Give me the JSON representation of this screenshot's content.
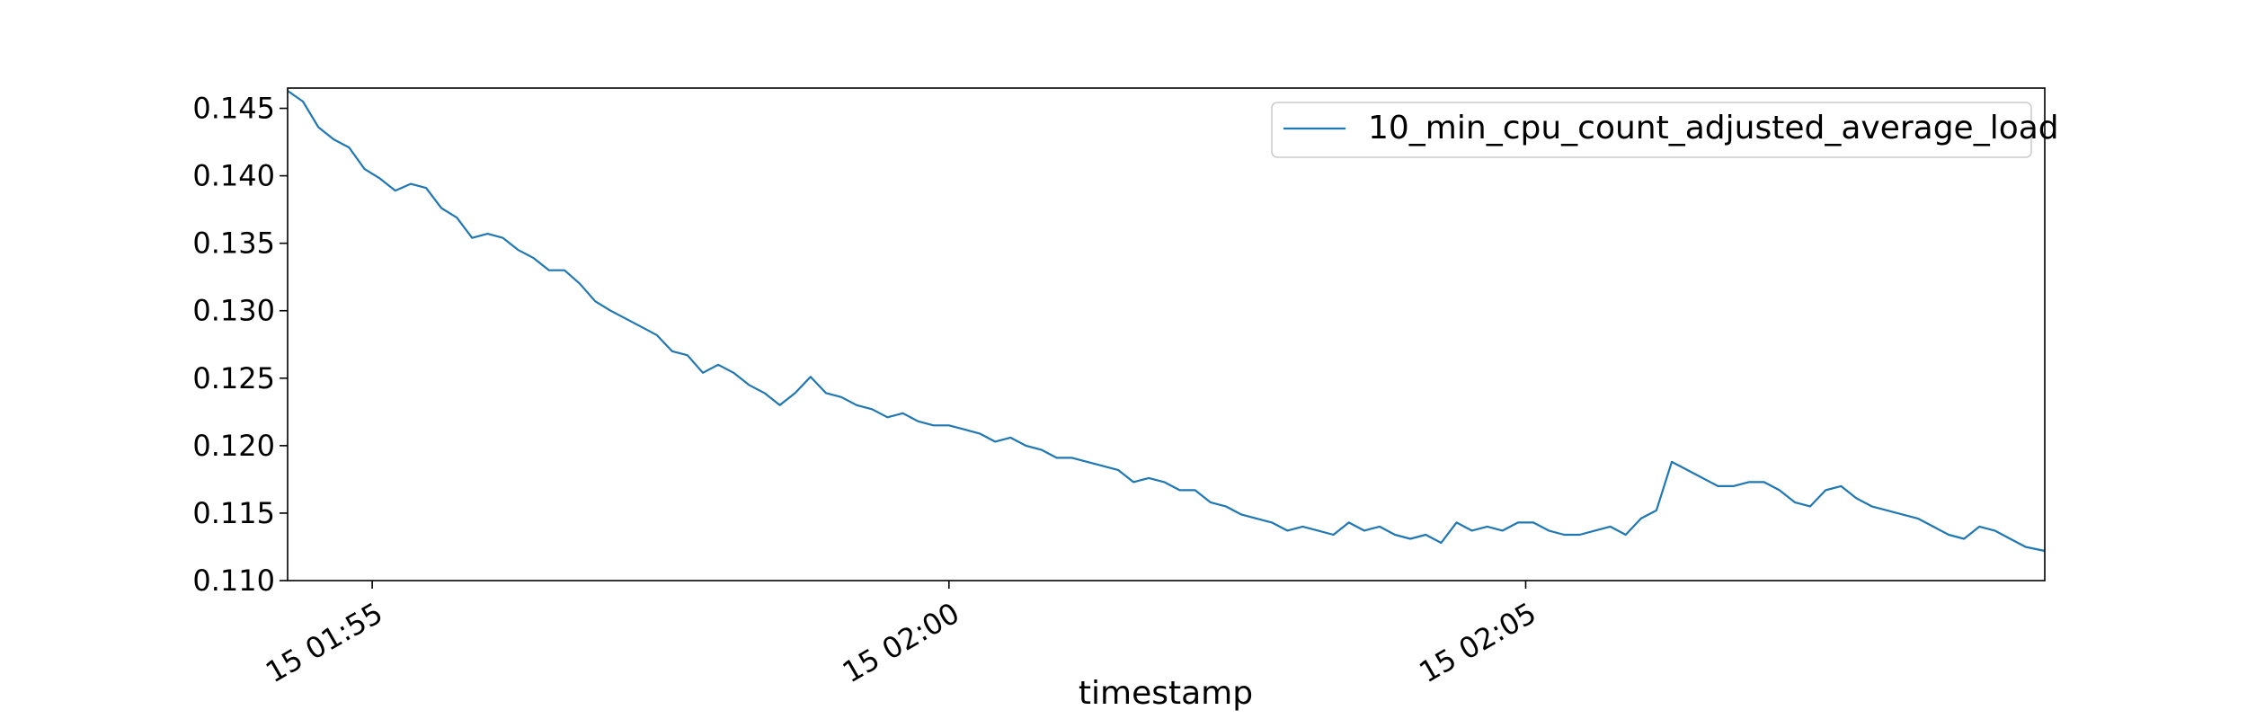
{
  "chart_data": {
    "type": "line",
    "title": "",
    "xlabel": "timestamp",
    "ylabel": "",
    "x_tick_labels": [
      "15 01:55",
      "15 02:00",
      "15 02:05"
    ],
    "x_ticks": [
      "01:55",
      "02:00",
      "02:05"
    ],
    "xlim": [
      "01:54:16",
      "02:09:30"
    ],
    "ylim": [
      0.11,
      0.1465
    ],
    "y_tick_labels": [
      "0.110",
      "0.115",
      "0.120",
      "0.125",
      "0.130",
      "0.135",
      "0.140",
      "0.145"
    ],
    "y_ticks": [
      0.11,
      0.115,
      0.12,
      0.125,
      0.13,
      0.135,
      0.14,
      0.145
    ],
    "grid": false,
    "legend_position": "top-right",
    "series": [
      {
        "name": "10_min_cpu_count_adjusted_average_load",
        "color": "#1f77b4",
        "x": [
          "01:54:16",
          "01:54:24",
          "01:54:32",
          "01:54:40",
          "01:54:48",
          "01:54:56",
          "01:55:04",
          "01:55:12",
          "01:55:20",
          "01:55:28",
          "01:55:36",
          "01:55:44",
          "01:55:52",
          "01:56:00",
          "01:56:08",
          "01:56:16",
          "01:56:24",
          "01:56:32",
          "01:56:40",
          "01:56:48",
          "01:56:56",
          "01:57:04",
          "01:57:12",
          "01:57:20",
          "01:57:28",
          "01:57:36",
          "01:57:44",
          "01:57:52",
          "01:58:00",
          "01:58:08",
          "01:58:16",
          "01:58:24",
          "01:58:32",
          "01:58:40",
          "01:58:48",
          "01:58:56",
          "01:59:04",
          "01:59:12",
          "01:59:20",
          "01:59:28",
          "01:59:36",
          "01:59:44",
          "01:59:52",
          "02:00:00",
          "02:00:08",
          "02:00:16",
          "02:00:24",
          "02:00:32",
          "02:00:40",
          "02:00:48",
          "02:00:56",
          "02:01:04",
          "02:01:12",
          "02:01:20",
          "02:01:28",
          "02:01:36",
          "02:01:44",
          "02:01:52",
          "02:02:00",
          "02:02:08",
          "02:02:16",
          "02:02:24",
          "02:02:32",
          "02:02:40",
          "02:02:48",
          "02:02:56",
          "02:03:04",
          "02:03:12",
          "02:03:20",
          "02:03:28",
          "02:03:36",
          "02:03:44",
          "02:03:52",
          "02:04:00",
          "02:04:08",
          "02:04:16",
          "02:04:24",
          "02:04:32",
          "02:04:40",
          "02:04:48",
          "02:04:56",
          "02:05:04",
          "02:05:12",
          "02:05:20",
          "02:05:28",
          "02:05:36",
          "02:05:44",
          "02:05:52",
          "02:06:00",
          "02:06:08",
          "02:06:16",
          "02:06:24",
          "02:06:32",
          "02:06:40",
          "02:06:48",
          "02:06:56",
          "02:07:04",
          "02:07:12",
          "02:07:20",
          "02:07:28",
          "02:07:36",
          "02:07:44",
          "02:07:52",
          "02:08:00",
          "02:08:08",
          "02:08:16",
          "02:08:24",
          "02:08:32",
          "02:08:40",
          "02:08:48",
          "02:08:56",
          "02:09:04",
          "02:09:12",
          "02:09:20",
          "02:09:30"
        ],
        "values": [
          0.1463,
          0.1455,
          0.1436,
          0.1427,
          0.1421,
          0.1405,
          0.1398,
          0.1389,
          0.1394,
          0.1391,
          0.1376,
          0.1369,
          0.1354,
          0.1357,
          0.1354,
          0.1345,
          0.1339,
          0.133,
          0.133,
          0.132,
          0.1307,
          0.13,
          0.1294,
          0.1288,
          0.1282,
          0.127,
          0.1267,
          0.1254,
          0.126,
          0.1254,
          0.1245,
          0.1239,
          0.123,
          0.1239,
          0.1251,
          0.1239,
          0.1236,
          0.123,
          0.1227,
          0.1221,
          0.1224,
          0.1218,
          0.1215,
          0.1215,
          0.1212,
          0.1209,
          0.1203,
          0.1206,
          0.12,
          0.1197,
          0.1191,
          0.1191,
          0.1188,
          0.1185,
          0.1182,
          0.1173,
          0.1176,
          0.1173,
          0.1167,
          0.1167,
          0.1158,
          0.1155,
          0.1149,
          0.1146,
          0.1143,
          0.1137,
          0.114,
          0.1137,
          0.1134,
          0.1143,
          0.1137,
          0.114,
          0.1134,
          0.1131,
          0.1134,
          0.1128,
          0.1143,
          0.1137,
          0.114,
          0.1137,
          0.1143,
          0.1143,
          0.1137,
          0.1134,
          0.1134,
          0.1137,
          0.114,
          0.1134,
          0.1146,
          0.1152,
          0.1188,
          0.1182,
          0.1176,
          0.117,
          0.117,
          0.1173,
          0.1173,
          0.1167,
          0.1158,
          0.1155,
          0.1167,
          0.117,
          0.1161,
          0.1155,
          0.1152,
          0.1149,
          0.1146,
          0.114,
          0.1134,
          0.1131,
          0.114,
          0.1137,
          0.1131,
          0.1125,
          0.1122
        ]
      }
    ]
  }
}
